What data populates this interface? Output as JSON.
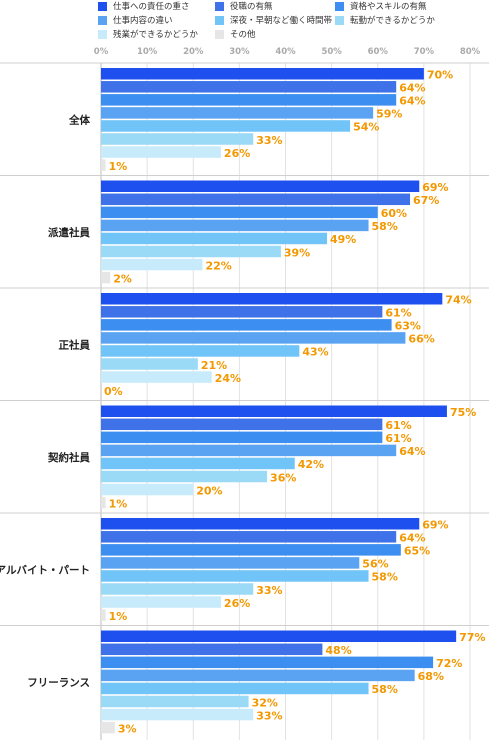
{
  "chart_data": {
    "type": "bar",
    "orientation": "horizontal",
    "xlim": [
      0,
      80
    ],
    "ticks": [
      0,
      10,
      20,
      30,
      40,
      50,
      60,
      70,
      80
    ],
    "tick_format": "%",
    "grid": true,
    "legend_position": "top",
    "categories": [
      "全体",
      "派遣社員",
      "正社員",
      "契約社員",
      "アルバイト・パート",
      "フリーランス"
    ],
    "series": [
      {
        "name": "仕事への責任の重さ",
        "color": "#1d50ef",
        "values": [
          70,
          69,
          74,
          75,
          69,
          77
        ]
      },
      {
        "name": "役職の有無",
        "color": "#3f72e9",
        "values": [
          64,
          67,
          61,
          61,
          64,
          48
        ]
      },
      {
        "name": "資格やスキルの有無",
        "color": "#3c8ef0",
        "values": [
          64,
          60,
          63,
          61,
          65,
          72
        ]
      },
      {
        "name": "仕事内容の違い",
        "color": "#5aa3f2",
        "values": [
          59,
          58,
          66,
          64,
          56,
          68
        ]
      },
      {
        "name": "深夜・早朝など働く時間帯",
        "color": "#70c4f7",
        "values": [
          54,
          49,
          43,
          42,
          58,
          58
        ]
      },
      {
        "name": "転勤ができるかどうか",
        "color": "#9bdaf6",
        "values": [
          33,
          39,
          21,
          36,
          33,
          32
        ]
      },
      {
        "name": "残業ができるかどうか",
        "color": "#c7ebfa",
        "values": [
          26,
          22,
          24,
          20,
          26,
          33
        ]
      },
      {
        "name": "その他",
        "color": "#e6e6e6",
        "values": [
          1,
          2,
          0,
          1,
          1,
          3
        ]
      }
    ]
  }
}
